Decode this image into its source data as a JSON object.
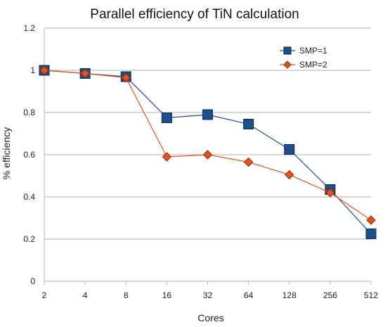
{
  "chart_data": {
    "type": "line",
    "title": "Parallel efficiency of TiN calculation",
    "xlabel": "Cores",
    "ylabel": "% efficiency",
    "categories": [
      "2",
      "4",
      "8",
      "16",
      "32",
      "64",
      "128",
      "256",
      "512"
    ],
    "ylim": [
      0,
      1.2
    ],
    "yticks": [
      "0",
      "0.2",
      "0.4",
      "0.6",
      "0.8",
      "1",
      "1.2"
    ],
    "grid": true,
    "legend_position": "top-right",
    "series": [
      {
        "name": "SMP=1",
        "color": "#1f4e8c",
        "marker": "square",
        "values": [
          1.0,
          0.985,
          0.97,
          0.775,
          0.79,
          0.745,
          0.625,
          0.435,
          0.225
        ]
      },
      {
        "name": "SMP=2",
        "color": "#e8501e",
        "marker": "diamond",
        "values": [
          1.0,
          0.985,
          0.965,
          0.59,
          0.6,
          0.565,
          0.505,
          0.42,
          0.29
        ]
      }
    ]
  }
}
